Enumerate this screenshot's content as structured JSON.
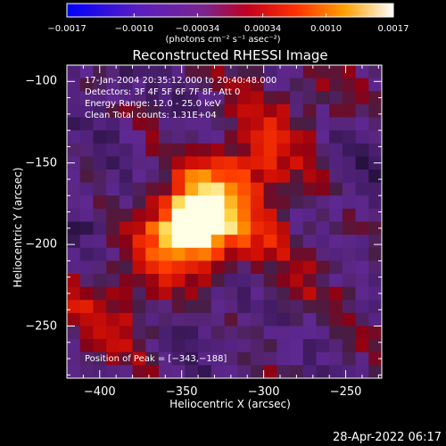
{
  "chart_data": {
    "type": "heatmap",
    "title": "Reconstructed RHESSI Image",
    "xlabel": "Heliocentric X (arcsec)",
    "ylabel": "Heliocentric Y (arcsec)",
    "xlim": [
      -420,
      -228
    ],
    "ylim": [
      -282,
      -90
    ],
    "x_ticks": [
      "−400",
      "−350",
      "−300",
      "−250"
    ],
    "x_tick_values": [
      -400,
      -350,
      -300,
      -250
    ],
    "y_ticks": [
      "−100",
      "−150",
      "−200",
      "−250"
    ],
    "y_tick_values": [
      -100,
      -150,
      -200,
      -250
    ],
    "colorbar": {
      "tick_labels": [
        "−0.0017",
        "−0.0010",
        "−0.00034",
        "0.00034",
        "0.0010",
        "0.0017"
      ],
      "tick_values": [
        -0.0017,
        -0.001,
        -0.00034,
        0.00034,
        0.001,
        0.0017
      ],
      "range": [
        -0.0017,
        0.0017
      ],
      "unit": "(photons cm⁻² s⁻¹ asec⁻²)",
      "colors": [
        "#0000ff",
        "#6a2aa0",
        "#b0002a",
        "#ff2200",
        "#ff9a00",
        "#ffffff"
      ]
    },
    "peak": {
      "x": -343,
      "y": -188,
      "value": 0.0017
    },
    "annotations": {
      "time_range": "17-Jan-2004 20:35:12.000 to 20:40:48.000",
      "detectors": "Detectors: 3F 4F 5F 6F 7F 8F, Att 0",
      "energy": "Energy Range: 12.0 - 25.0 keV",
      "method": "Clean     Total counts: 1.31E+04",
      "peak_text": "Position of Peak = [−343,−188]"
    },
    "grid": false,
    "pixel_resolution_arcsec": 8
  },
  "footer": {
    "timestamp": "28-Apr-2022 06:17"
  }
}
